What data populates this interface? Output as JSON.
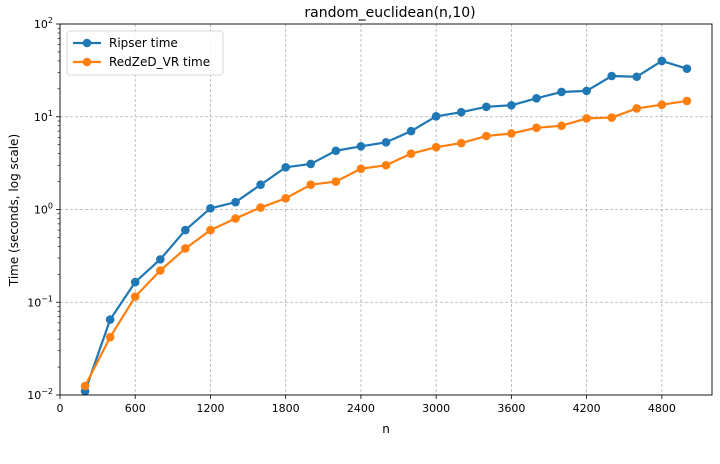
{
  "chart_data": {
    "type": "line",
    "title": "random_euclidean(n,10)",
    "xlabel": "n",
    "ylabel": "Time (seconds, log scale)",
    "xlim": [
      0,
      5200
    ],
    "ylim": [
      0.01,
      100
    ],
    "yscale": "log",
    "xticks": [
      0,
      600,
      1200,
      1800,
      2400,
      3000,
      3600,
      4200,
      4800
    ],
    "xtick_labels": [
      "0",
      "600",
      "1200",
      "1800",
      "2400",
      "3000",
      "3600",
      "4200",
      "4800"
    ],
    "yticks": [
      0.01,
      0.1,
      1,
      10,
      100
    ],
    "ytick_labels": [
      {
        "base": "10",
        "exp": "−2"
      },
      {
        "base": "10",
        "exp": "−1"
      },
      {
        "base": "10",
        "exp": "0"
      },
      {
        "base": "10",
        "exp": "1"
      },
      {
        "base": "10",
        "exp": "2"
      }
    ],
    "grid": true,
    "legend_position": "top-left",
    "x": [
      200,
      400,
      600,
      800,
      1000,
      1200,
      1400,
      1600,
      1800,
      2000,
      2200,
      2400,
      2600,
      2800,
      3000,
      3200,
      3400,
      3600,
      3800,
      4000,
      4200,
      4400,
      4600,
      4800,
      5000
    ],
    "series": [
      {
        "name": "Ripser time",
        "color": "#1f77b4",
        "values": [
          0.011,
          0.065,
          0.165,
          0.29,
          0.6,
          1.03,
          1.2,
          1.85,
          2.85,
          3.1,
          4.3,
          4.8,
          5.3,
          7.0,
          10.1,
          11.2,
          12.8,
          13.3,
          15.8,
          18.5,
          19.0,
          27.5,
          27.0,
          40.0,
          33.0
        ]
      },
      {
        "name": "RedZeD_VR time",
        "color": "#ff7f0e",
        "values": [
          0.0125,
          0.042,
          0.115,
          0.22,
          0.38,
          0.6,
          0.8,
          1.05,
          1.32,
          1.85,
          2.0,
          2.75,
          3.0,
          4.0,
          4.7,
          5.2,
          6.2,
          6.6,
          7.6,
          8.0,
          9.6,
          9.8,
          12.3,
          13.5,
          14.8
        ]
      }
    ]
  }
}
